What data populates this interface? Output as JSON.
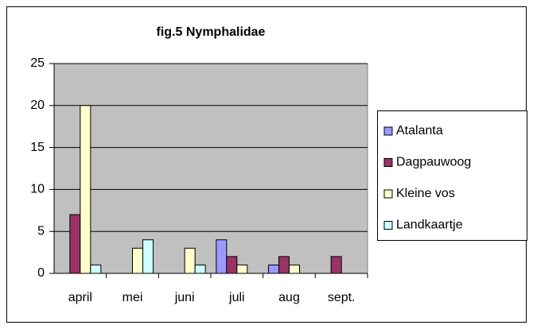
{
  "chart_data": {
    "type": "bar",
    "title": "fig.5  Nymphalidae",
    "categories": [
      "april",
      "mei",
      "juni",
      "juli",
      "aug",
      "sept."
    ],
    "series": [
      {
        "name": "Atalanta",
        "color": "#9999ff",
        "values": [
          0,
          0,
          0,
          4,
          1,
          0
        ]
      },
      {
        "name": "Dagpauwoog",
        "color": "#993366",
        "values": [
          7,
          0,
          0,
          2,
          2,
          2
        ]
      },
      {
        "name": "Kleine vos",
        "color": "#ffffcc",
        "values": [
          20,
          3,
          3,
          1,
          1,
          0
        ]
      },
      {
        "name": "Landkaartje",
        "color": "#ccffff",
        "values": [
          1,
          4,
          1,
          0,
          0,
          0
        ]
      }
    ],
    "ylim": [
      0,
      25
    ],
    "yticks": [
      0,
      5,
      10,
      15,
      20,
      25
    ],
    "grid": true,
    "legend": "right"
  }
}
